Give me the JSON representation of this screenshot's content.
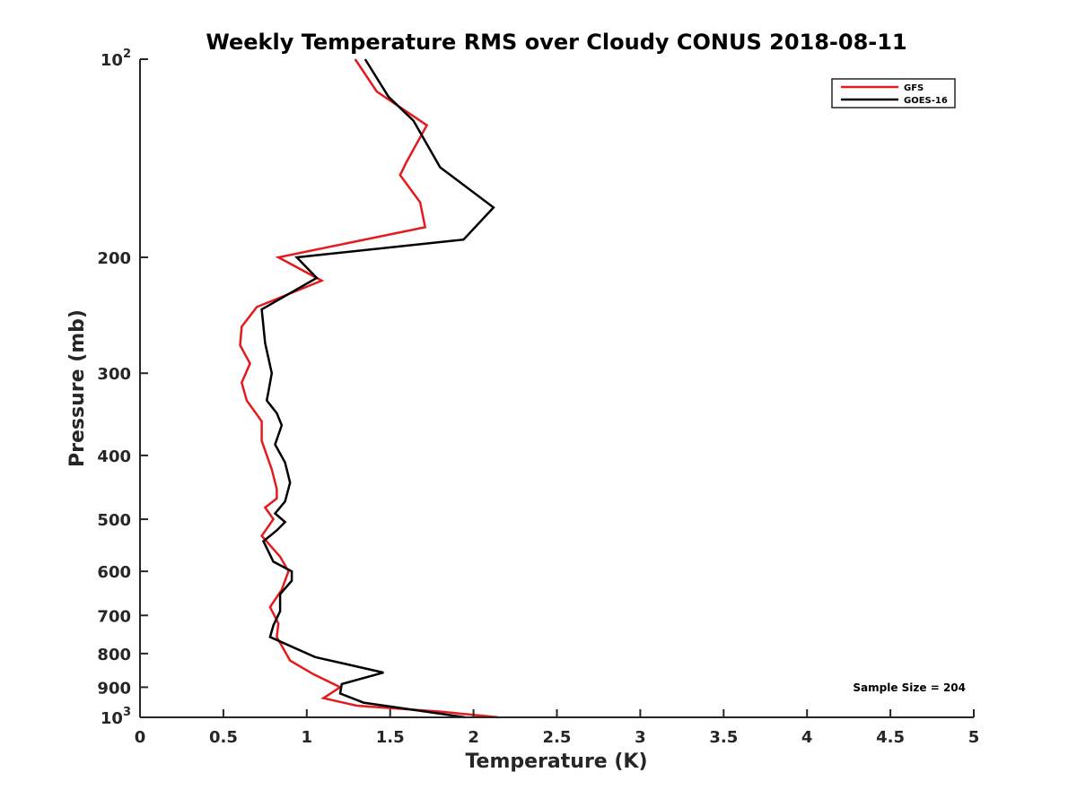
{
  "chart_data": {
    "type": "line",
    "title": "Weekly Temperature RMS over Cloudy CONUS 2018-08-11",
    "xlabel": "Temperature (K)",
    "ylabel": "Pressure (mb)",
    "xlim": [
      0,
      5
    ],
    "ylim": [
      100,
      1000
    ],
    "y_scale": "log",
    "y_reversed": true,
    "grid": false,
    "legend_position": "top-right",
    "x_ticks": [
      {
        "value": 0,
        "label": "0"
      },
      {
        "value": 0.5,
        "label": "0.5"
      },
      {
        "value": 1,
        "label": "1"
      },
      {
        "value": 1.5,
        "label": "1.5"
      },
      {
        "value": 2,
        "label": "2"
      },
      {
        "value": 2.5,
        "label": "2.5"
      },
      {
        "value": 3,
        "label": "3"
      },
      {
        "value": 3.5,
        "label": "3.5"
      },
      {
        "value": 4,
        "label": "4"
      },
      {
        "value": 4.5,
        "label": "4.5"
      },
      {
        "value": 5,
        "label": "5"
      }
    ],
    "y_ticks": [
      {
        "value": 100,
        "base": "10",
        "exp": "2"
      },
      {
        "value": 200,
        "label": "200"
      },
      {
        "value": 300,
        "label": "300"
      },
      {
        "value": 400,
        "label": "400"
      },
      {
        "value": 500,
        "label": "500"
      },
      {
        "value": 600,
        "label": "600"
      },
      {
        "value": 700,
        "label": "700"
      },
      {
        "value": 800,
        "label": "800"
      },
      {
        "value": 900,
        "label": "900"
      },
      {
        "value": 1000,
        "base": "10",
        "exp": "3"
      }
    ],
    "annotation": "Sample Size = 204",
    "series": [
      {
        "name": "GFS",
        "color": "#e41a1c",
        "points": [
          [
            1.29,
            100
          ],
          [
            1.42,
            112
          ],
          [
            1.72,
            126
          ],
          [
            1.6,
            143
          ],
          [
            1.56,
            150
          ],
          [
            1.68,
            165
          ],
          [
            1.71,
            180
          ],
          [
            0.83,
            200
          ],
          [
            1.09,
            217
          ],
          [
            0.7,
            238
          ],
          [
            0.61,
            255
          ],
          [
            0.6,
            272
          ],
          [
            0.66,
            290
          ],
          [
            0.61,
            310
          ],
          [
            0.64,
            330
          ],
          [
            0.73,
            355
          ],
          [
            0.73,
            380
          ],
          [
            0.79,
            420
          ],
          [
            0.82,
            450
          ],
          [
            0.82,
            465
          ],
          [
            0.75,
            480
          ],
          [
            0.8,
            500
          ],
          [
            0.73,
            530
          ],
          [
            0.84,
            570
          ],
          [
            0.89,
            600
          ],
          [
            0.85,
            640
          ],
          [
            0.78,
            680
          ],
          [
            0.83,
            720
          ],
          [
            0.82,
            755
          ],
          [
            0.9,
            820
          ],
          [
            1.04,
            860
          ],
          [
            1.2,
            900
          ],
          [
            1.1,
            935
          ],
          [
            1.3,
            960
          ],
          [
            1.8,
            980
          ],
          [
            2.15,
            1000
          ]
        ]
      },
      {
        "name": "GOES-16",
        "color": "#000000",
        "points": [
          [
            1.35,
            100
          ],
          [
            1.49,
            114
          ],
          [
            1.64,
            124
          ],
          [
            1.8,
            146
          ],
          [
            2.12,
            168
          ],
          [
            1.94,
            188
          ],
          [
            0.94,
            200
          ],
          [
            1.06,
            215
          ],
          [
            0.73,
            240
          ],
          [
            0.75,
            270
          ],
          [
            0.79,
            300
          ],
          [
            0.77,
            320
          ],
          [
            0.76,
            330
          ],
          [
            0.82,
            345
          ],
          [
            0.85,
            360
          ],
          [
            0.81,
            385
          ],
          [
            0.87,
            410
          ],
          [
            0.9,
            440
          ],
          [
            0.87,
            470
          ],
          [
            0.81,
            490
          ],
          [
            0.87,
            505
          ],
          [
            0.82,
            520
          ],
          [
            0.74,
            540
          ],
          [
            0.8,
            580
          ],
          [
            0.91,
            600
          ],
          [
            0.91,
            620
          ],
          [
            0.84,
            650
          ],
          [
            0.84,
            690
          ],
          [
            0.8,
            725
          ],
          [
            0.78,
            755
          ],
          [
            1.05,
            810
          ],
          [
            1.46,
            855
          ],
          [
            1.21,
            890
          ],
          [
            1.2,
            920
          ],
          [
            1.34,
            950
          ],
          [
            1.95,
            1000
          ]
        ]
      }
    ]
  }
}
